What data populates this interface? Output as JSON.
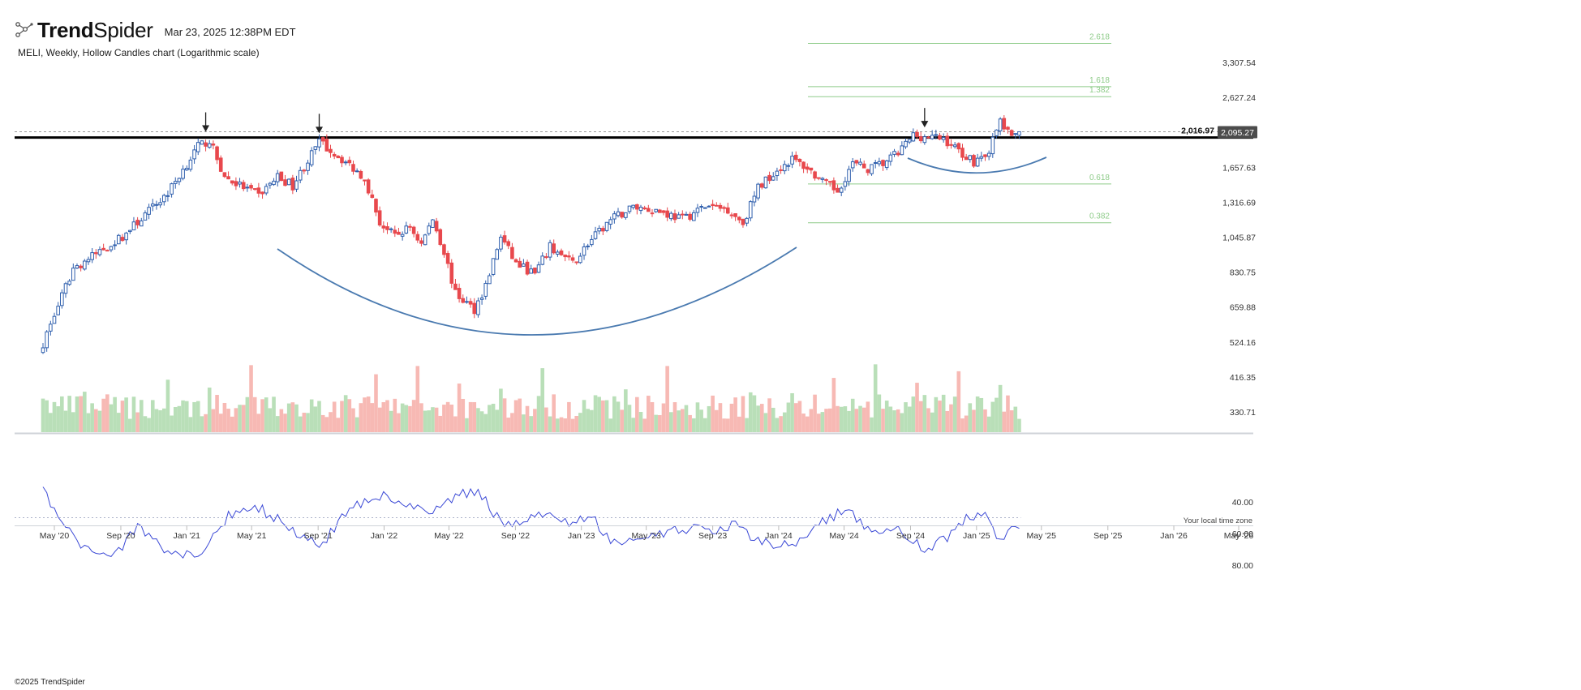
{
  "header": {
    "brand_prefix": "Trend",
    "brand_suffix": "Spider",
    "timestamp": "Mar 23, 2025 12:38PM EDT",
    "subtitle": "MELI, Weekly, Hollow Candles chart (Logarithmic scale)"
  },
  "footer": {
    "copyright": "©2025 TrendSpider",
    "timezone_note": "Your local time zone"
  },
  "colors": {
    "up": "#2f5fad",
    "down": "#e8484d",
    "volume_up": "#b9dfb8",
    "volume_down": "#f7b9b4",
    "fib": "#8fcc8a",
    "rsi_band": "#e9ecfb",
    "rsi_line": "#3b49d6",
    "arc": "#4a7ab0",
    "resistance": "#000000"
  },
  "chart_data": {
    "type": "candlestick",
    "symbol": "MELI",
    "timeframe": "Weekly",
    "scale": "log",
    "x_ticks": [
      "May '20",
      "Sep '20",
      "Jan '21",
      "May '21",
      "Sep '21",
      "Jan '22",
      "May '22",
      "Sep '22",
      "Jan '23",
      "May '23",
      "Sep '23",
      "Jan '24",
      "May '24",
      "Sep '24",
      "Jan '25",
      "May '25",
      "Sep '25",
      "Jan '26",
      "May '26"
    ],
    "y_ticks": [
      "3,307.54",
      "2,627.24",
      "1,657.63",
      "1,316.69",
      "1,045.87",
      "830.75",
      "659.88",
      "524.16",
      "416.35",
      "330.71"
    ],
    "price_anchors": [
      {
        "date": "2020-04-10",
        "close": 520
      },
      {
        "date": "2020-06-05",
        "close": 850
      },
      {
        "date": "2020-09-04",
        "close": 1050
      },
      {
        "date": "2020-11-27",
        "close": 1400
      },
      {
        "date": "2021-01-22",
        "close": 1900
      },
      {
        "date": "2021-02-12",
        "close": 1980
      },
      {
        "date": "2021-03-12",
        "close": 1550
      },
      {
        "date": "2021-05-14",
        "close": 1380
      },
      {
        "date": "2021-06-18",
        "close": 1560
      },
      {
        "date": "2021-07-16",
        "close": 1470
      },
      {
        "date": "2021-09-03",
        "close": 1960
      },
      {
        "date": "2021-10-15",
        "close": 1750
      },
      {
        "date": "2021-11-26",
        "close": 1550
      },
      {
        "date": "2021-12-24",
        "close": 1150
      },
      {
        "date": "2022-01-21",
        "close": 1050
      },
      {
        "date": "2022-02-18",
        "close": 1120
      },
      {
        "date": "2022-03-11",
        "close": 1000
      },
      {
        "date": "2022-04-01",
        "close": 1180
      },
      {
        "date": "2022-04-22",
        "close": 950
      },
      {
        "date": "2022-05-13",
        "close": 720
      },
      {
        "date": "2022-06-17",
        "close": 650
      },
      {
        "date": "2022-07-08",
        "close": 760
      },
      {
        "date": "2022-08-05",
        "close": 1050
      },
      {
        "date": "2022-09-02",
        "close": 880
      },
      {
        "date": "2022-10-07",
        "close": 820
      },
      {
        "date": "2022-11-04",
        "close": 980
      },
      {
        "date": "2022-12-16",
        "close": 880
      },
      {
        "date": "2023-01-13",
        "close": 1000
      },
      {
        "date": "2023-02-24",
        "close": 1170
      },
      {
        "date": "2023-04-07",
        "close": 1280
      },
      {
        "date": "2023-05-19",
        "close": 1250
      },
      {
        "date": "2023-07-07",
        "close": 1180
      },
      {
        "date": "2023-08-18",
        "close": 1280
      },
      {
        "date": "2023-09-29",
        "close": 1260
      },
      {
        "date": "2023-10-27",
        "close": 1150
      },
      {
        "date": "2023-11-24",
        "close": 1450
      },
      {
        "date": "2023-12-22",
        "close": 1600
      },
      {
        "date": "2024-01-26",
        "close": 1750
      },
      {
        "date": "2024-02-23",
        "close": 1650
      },
      {
        "date": "2024-03-22",
        "close": 1500
      },
      {
        "date": "2024-04-19",
        "close": 1420
      },
      {
        "date": "2024-05-17",
        "close": 1700
      },
      {
        "date": "2024-06-14",
        "close": 1640
      },
      {
        "date": "2024-07-12",
        "close": 1700
      },
      {
        "date": "2024-08-09",
        "close": 1820
      },
      {
        "date": "2024-09-06",
        "close": 2050
      },
      {
        "date": "2024-10-04",
        "close": 2020
      },
      {
        "date": "2024-11-01",
        "close": 2000
      },
      {
        "date": "2024-11-29",
        "close": 1850
      },
      {
        "date": "2024-12-27",
        "close": 1720
      },
      {
        "date": "2025-01-24",
        "close": 1850
      },
      {
        "date": "2025-02-14",
        "close": 2250
      },
      {
        "date": "2025-03-07",
        "close": 2000
      },
      {
        "date": "2025-03-21",
        "close": 2095.27
      }
    ],
    "last_price": 2095.27,
    "last_price_label": "2,095.27",
    "resistance_level": 2016.97,
    "resistance_label": "2,016.97",
    "fibonacci": [
      {
        "label": "2.618",
        "price": 3750
      },
      {
        "label": "1.618",
        "price": 2820
      },
      {
        "label": "1.382",
        "price": 2640
      },
      {
        "label": "0.618",
        "price": 1485
      },
      {
        "label": "0.382",
        "price": 1150
      }
    ],
    "arrows": [
      {
        "date": "2021-02-05",
        "price": 2050
      },
      {
        "date": "2021-09-03",
        "price": 2030
      },
      {
        "date": "2024-09-27",
        "price": 2110
      }
    ],
    "rsi": {
      "ticks": [
        "80.00",
        "60.00",
        "40.00"
      ],
      "band": [
        30,
        70
      ],
      "midline": 50,
      "anchors": [
        {
          "date": "2020-04-10",
          "value": 34
        },
        {
          "date": "2020-06-05",
          "value": 62
        },
        {
          "date": "2020-07-17",
          "value": 74
        },
        {
          "date": "2020-08-28",
          "value": 70
        },
        {
          "date": "2020-10-02",
          "value": 56
        },
        {
          "date": "2020-11-13",
          "value": 68
        },
        {
          "date": "2021-01-22",
          "value": 76
        },
        {
          "date": "2021-03-19",
          "value": 48
        },
        {
          "date": "2021-05-14",
          "value": 44
        },
        {
          "date": "2021-06-25",
          "value": 52
        },
        {
          "date": "2021-09-03",
          "value": 69
        },
        {
          "date": "2021-10-22",
          "value": 46
        },
        {
          "date": "2021-12-17",
          "value": 35
        },
        {
          "date": "2022-02-04",
          "value": 40
        },
        {
          "date": "2022-03-25",
          "value": 48
        },
        {
          "date": "2022-05-13",
          "value": 36
        },
        {
          "date": "2022-06-24",
          "value": 33
        },
        {
          "date": "2022-08-12",
          "value": 57
        },
        {
          "date": "2022-10-14",
          "value": 46
        },
        {
          "date": "2022-12-09",
          "value": 54
        },
        {
          "date": "2023-01-20",
          "value": 50
        },
        {
          "date": "2023-03-03",
          "value": 66
        },
        {
          "date": "2023-05-12",
          "value": 62
        },
        {
          "date": "2023-07-21",
          "value": 56
        },
        {
          "date": "2023-09-01",
          "value": 61
        },
        {
          "date": "2023-10-13",
          "value": 54
        },
        {
          "date": "2023-12-01",
          "value": 66
        },
        {
          "date": "2024-02-02",
          "value": 67
        },
        {
          "date": "2024-03-22",
          "value": 52
        },
        {
          "date": "2024-05-03",
          "value": 45
        },
        {
          "date": "2024-06-14",
          "value": 56
        },
        {
          "date": "2024-08-09",
          "value": 58
        },
        {
          "date": "2024-09-27",
          "value": 70
        },
        {
          "date": "2024-11-08",
          "value": 62
        },
        {
          "date": "2024-12-20",
          "value": 48
        },
        {
          "date": "2025-01-17",
          "value": 50
        },
        {
          "date": "2025-02-14",
          "value": 67
        },
        {
          "date": "2025-03-07",
          "value": 55
        },
        {
          "date": "2025-03-21",
          "value": 58
        }
      ]
    }
  }
}
